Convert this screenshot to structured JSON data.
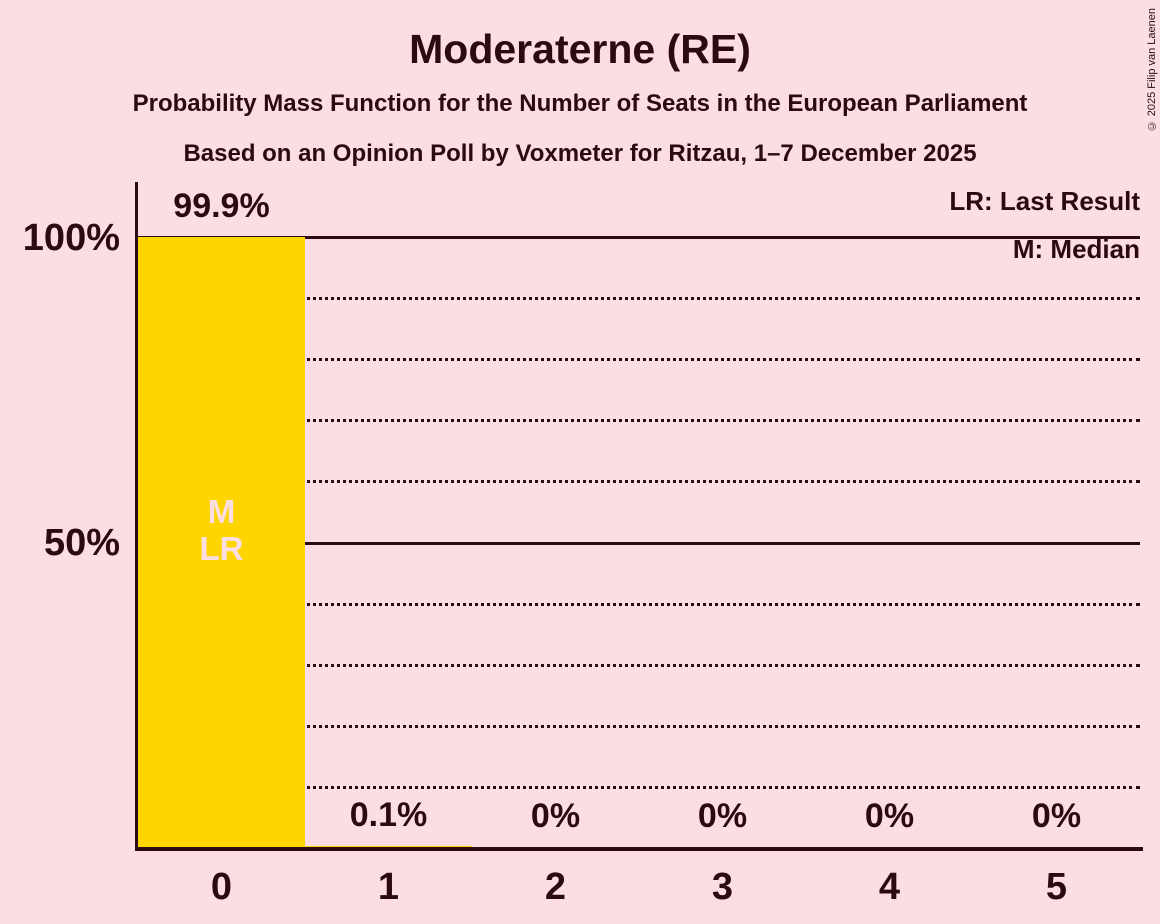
{
  "header": {
    "title": "Moderaterne (RE)",
    "subtitle1": "Probability Mass Function for the Number of Seats in the European Parliament",
    "subtitle2": "Based on an Opinion Poll by Voxmeter for Ritzau, 1–7 December 2025"
  },
  "copyright": "© 2025 Filip van Laenen",
  "legend": {
    "last_result": "LR: Last Result",
    "median": "M: Median"
  },
  "y_axis": {
    "top_label": "100%",
    "middle_label": "50%"
  },
  "colors": {
    "background": "#fbdee3",
    "bar": "#ffd500",
    "text": "#2b0a12",
    "bar_inner_label": "#fbdee3"
  },
  "chart_data": {
    "type": "bar",
    "title": "Moderaterne (RE)",
    "categories": [
      "0",
      "1",
      "2",
      "3",
      "4",
      "5"
    ],
    "values": [
      99.9,
      0.1,
      0,
      0,
      0,
      0
    ],
    "value_labels": [
      "99.9%",
      "0.1%",
      "0%",
      "0%",
      "0%",
      "0%"
    ],
    "ylim": [
      0,
      100
    ],
    "y_tick_labels": [
      "100%",
      "50%"
    ],
    "dotted_gridlines_pct": [
      10,
      20,
      30,
      40,
      60,
      70,
      80,
      90
    ],
    "solid_gridlines_pct": [
      50,
      100
    ],
    "bar_color": "#ffd500",
    "median_seat": "0",
    "last_result_seat": "0",
    "bar_marker_labels": [
      "M",
      "LR"
    ],
    "legend_entries": [
      "LR: Last Result",
      "M: Median"
    ]
  }
}
